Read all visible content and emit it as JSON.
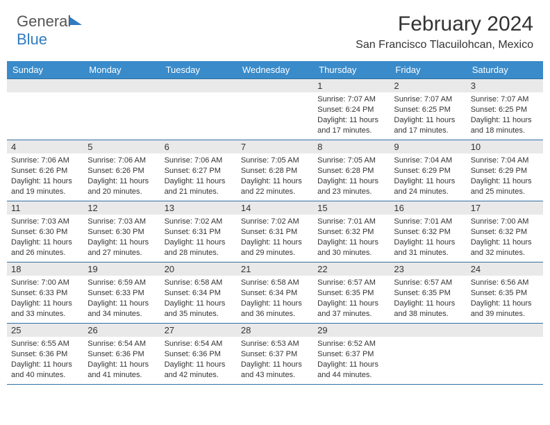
{
  "brand": {
    "part1": "General",
    "part2": "Blue"
  },
  "title": "February 2024",
  "location": "San Francisco Tlacuilohcan, Mexico",
  "colors": {
    "header_bg": "#3a8bc9",
    "header_text": "#ffffff",
    "row_border": "#2f6fa3",
    "daynum_bg": "#e9e9e9",
    "text": "#333333",
    "brand_blue": "#2f7bbf"
  },
  "typography": {
    "title_fontsize": 30,
    "subtitle_fontsize": 16,
    "header_fontsize": 13,
    "body_fontsize": 11
  },
  "layout": {
    "columns": 7,
    "rows": 5,
    "first_weekday_index": 4
  },
  "weekdays": [
    "Sunday",
    "Monday",
    "Tuesday",
    "Wednesday",
    "Thursday",
    "Friday",
    "Saturday"
  ],
  "days": [
    {
      "n": 1,
      "sunrise": "7:07 AM",
      "sunset": "6:24 PM",
      "daylight": "11 hours and 17 minutes."
    },
    {
      "n": 2,
      "sunrise": "7:07 AM",
      "sunset": "6:25 PM",
      "daylight": "11 hours and 17 minutes."
    },
    {
      "n": 3,
      "sunrise": "7:07 AM",
      "sunset": "6:25 PM",
      "daylight": "11 hours and 18 minutes."
    },
    {
      "n": 4,
      "sunrise": "7:06 AM",
      "sunset": "6:26 PM",
      "daylight": "11 hours and 19 minutes."
    },
    {
      "n": 5,
      "sunrise": "7:06 AM",
      "sunset": "6:26 PM",
      "daylight": "11 hours and 20 minutes."
    },
    {
      "n": 6,
      "sunrise": "7:06 AM",
      "sunset": "6:27 PM",
      "daylight": "11 hours and 21 minutes."
    },
    {
      "n": 7,
      "sunrise": "7:05 AM",
      "sunset": "6:28 PM",
      "daylight": "11 hours and 22 minutes."
    },
    {
      "n": 8,
      "sunrise": "7:05 AM",
      "sunset": "6:28 PM",
      "daylight": "11 hours and 23 minutes."
    },
    {
      "n": 9,
      "sunrise": "7:04 AM",
      "sunset": "6:29 PM",
      "daylight": "11 hours and 24 minutes."
    },
    {
      "n": 10,
      "sunrise": "7:04 AM",
      "sunset": "6:29 PM",
      "daylight": "11 hours and 25 minutes."
    },
    {
      "n": 11,
      "sunrise": "7:03 AM",
      "sunset": "6:30 PM",
      "daylight": "11 hours and 26 minutes."
    },
    {
      "n": 12,
      "sunrise": "7:03 AM",
      "sunset": "6:30 PM",
      "daylight": "11 hours and 27 minutes."
    },
    {
      "n": 13,
      "sunrise": "7:02 AM",
      "sunset": "6:31 PM",
      "daylight": "11 hours and 28 minutes."
    },
    {
      "n": 14,
      "sunrise": "7:02 AM",
      "sunset": "6:31 PM",
      "daylight": "11 hours and 29 minutes."
    },
    {
      "n": 15,
      "sunrise": "7:01 AM",
      "sunset": "6:32 PM",
      "daylight": "11 hours and 30 minutes."
    },
    {
      "n": 16,
      "sunrise": "7:01 AM",
      "sunset": "6:32 PM",
      "daylight": "11 hours and 31 minutes."
    },
    {
      "n": 17,
      "sunrise": "7:00 AM",
      "sunset": "6:32 PM",
      "daylight": "11 hours and 32 minutes."
    },
    {
      "n": 18,
      "sunrise": "7:00 AM",
      "sunset": "6:33 PM",
      "daylight": "11 hours and 33 minutes."
    },
    {
      "n": 19,
      "sunrise": "6:59 AM",
      "sunset": "6:33 PM",
      "daylight": "11 hours and 34 minutes."
    },
    {
      "n": 20,
      "sunrise": "6:58 AM",
      "sunset": "6:34 PM",
      "daylight": "11 hours and 35 minutes."
    },
    {
      "n": 21,
      "sunrise": "6:58 AM",
      "sunset": "6:34 PM",
      "daylight": "11 hours and 36 minutes."
    },
    {
      "n": 22,
      "sunrise": "6:57 AM",
      "sunset": "6:35 PM",
      "daylight": "11 hours and 37 minutes."
    },
    {
      "n": 23,
      "sunrise": "6:57 AM",
      "sunset": "6:35 PM",
      "daylight": "11 hours and 38 minutes."
    },
    {
      "n": 24,
      "sunrise": "6:56 AM",
      "sunset": "6:35 PM",
      "daylight": "11 hours and 39 minutes."
    },
    {
      "n": 25,
      "sunrise": "6:55 AM",
      "sunset": "6:36 PM",
      "daylight": "11 hours and 40 minutes."
    },
    {
      "n": 26,
      "sunrise": "6:54 AM",
      "sunset": "6:36 PM",
      "daylight": "11 hours and 41 minutes."
    },
    {
      "n": 27,
      "sunrise": "6:54 AM",
      "sunset": "6:36 PM",
      "daylight": "11 hours and 42 minutes."
    },
    {
      "n": 28,
      "sunrise": "6:53 AM",
      "sunset": "6:37 PM",
      "daylight": "11 hours and 43 minutes."
    },
    {
      "n": 29,
      "sunrise": "6:52 AM",
      "sunset": "6:37 PM",
      "daylight": "11 hours and 44 minutes."
    }
  ],
  "labels": {
    "sunrise": "Sunrise:",
    "sunset": "Sunset:",
    "daylight": "Daylight:"
  }
}
